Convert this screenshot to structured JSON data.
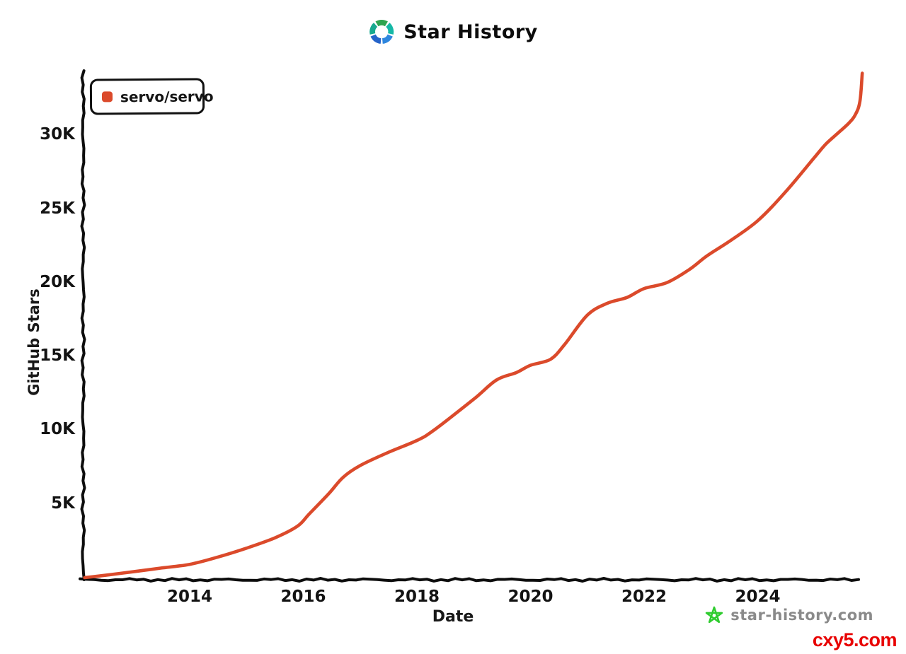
{
  "header": {
    "title": "Star History",
    "logo_segment_colors": [
      "#2EA44F",
      "#15B8A6",
      "#2E86DE",
      "#2563C9",
      "#18A98F"
    ]
  },
  "legend": {
    "series_label": "servo/servo",
    "swatch_color": "#DB4A2B"
  },
  "axes": {
    "color": "#0d0d0d",
    "y_label": "GitHub Stars",
    "x_label": "Date"
  },
  "chart_data": {
    "type": "line",
    "title": "Star History",
    "xlabel": "Date",
    "ylabel": "GitHub Stars",
    "x_ticks": [
      2014,
      2016,
      2018,
      2020,
      2022,
      2024
    ],
    "y_ticks": [
      {
        "value": 5000,
        "label": "5K"
      },
      {
        "value": 10000,
        "label": "10K"
      },
      {
        "value": 15000,
        "label": "15K"
      },
      {
        "value": 20000,
        "label": "20K"
      },
      {
        "value": 25000,
        "label": "25K"
      },
      {
        "value": 30000,
        "label": "30K"
      }
    ],
    "xlim": [
      2012.05,
      2025.9
    ],
    "ylim": [
      0,
      34500
    ],
    "grid": false,
    "legend_position": "top-left",
    "series": [
      {
        "name": "servo/servo",
        "color": "#DB4A2B",
        "points": [
          [
            2012.15,
            0
          ],
          [
            2012.6,
            200
          ],
          [
            2013.0,
            400
          ],
          [
            2013.5,
            650
          ],
          [
            2014.0,
            900
          ],
          [
            2014.5,
            1400
          ],
          [
            2015.0,
            2000
          ],
          [
            2015.5,
            2700
          ],
          [
            2015.9,
            3500
          ],
          [
            2016.1,
            4300
          ],
          [
            2016.45,
            5700
          ],
          [
            2016.7,
            6800
          ],
          [
            2017.0,
            7600
          ],
          [
            2017.5,
            8500
          ],
          [
            2018.0,
            9300
          ],
          [
            2018.3,
            10000
          ],
          [
            2019.0,
            12100
          ],
          [
            2019.4,
            13400
          ],
          [
            2019.75,
            13900
          ],
          [
            2020.0,
            14400
          ],
          [
            2020.35,
            14800
          ],
          [
            2020.6,
            15800
          ],
          [
            2021.0,
            17800
          ],
          [
            2021.35,
            18600
          ],
          [
            2021.7,
            19000
          ],
          [
            2022.0,
            19600
          ],
          [
            2022.4,
            20000
          ],
          [
            2022.8,
            20900
          ],
          [
            2023.1,
            21800
          ],
          [
            2023.5,
            22800
          ],
          [
            2024.0,
            24200
          ],
          [
            2024.5,
            26200
          ],
          [
            2025.0,
            28500
          ],
          [
            2025.2,
            29400
          ],
          [
            2025.4,
            30100
          ],
          [
            2025.6,
            30800
          ],
          [
            2025.72,
            31400
          ],
          [
            2025.8,
            32300
          ],
          [
            2025.84,
            34200
          ]
        ]
      }
    ]
  },
  "footer": {
    "watermark_text": "star-history.com",
    "watermark_color": "#8a8a8a",
    "star_icon_color": "#2fcc2f",
    "overlay_text": "cxy5.com",
    "overlay_color": "#e80000"
  }
}
